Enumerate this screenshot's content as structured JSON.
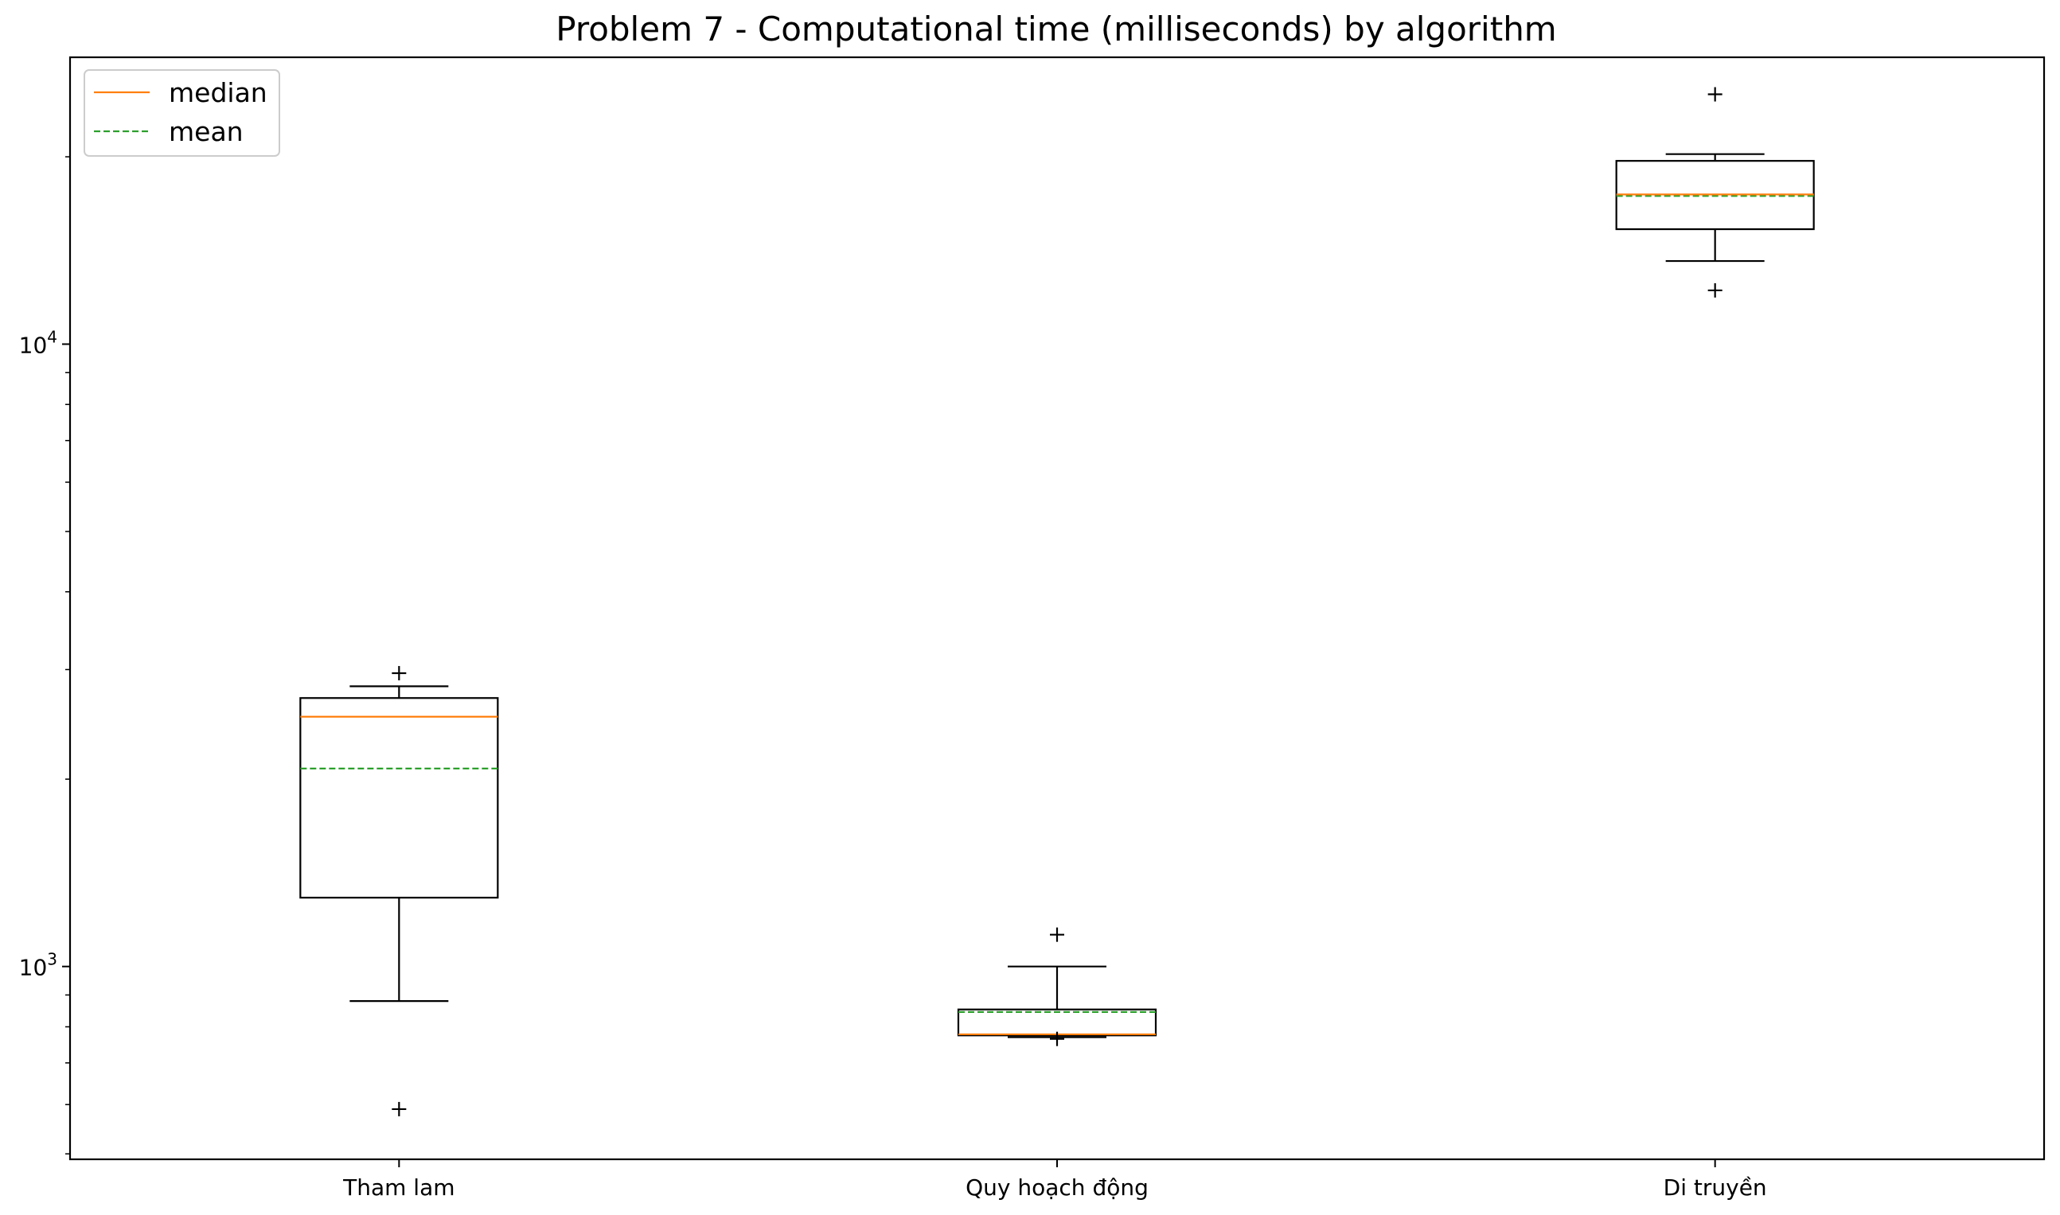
{
  "chart_data": {
    "type": "box",
    "title": "Problem 7 - Computational time (milliseconds) by algorithm",
    "xlabel": "",
    "ylabel": "",
    "yscale": "log",
    "ylim": [
      490,
      28900
    ],
    "y_ticks": [
      {
        "value": 1000,
        "base": "10",
        "exp": "3"
      },
      {
        "value": 10000,
        "base": "10",
        "exp": "4"
      }
    ],
    "categories": [
      "Tham lam",
      "Quy hoạch động",
      "Di truyền"
    ],
    "boxes": [
      {
        "name": "Tham lam",
        "whisker_low": 880,
        "q1": 1290,
        "median": 2520,
        "q3": 2700,
        "whisker_high": 2820,
        "mean": 2080,
        "outliers": [
          590,
          2960
        ]
      },
      {
        "name": "Quy hoạch động",
        "whisker_low": 770,
        "q1": 775,
        "median": 778,
        "q3": 853,
        "whisker_high": 1000,
        "mean": 845,
        "outliers": [
          765,
          1125
        ]
      },
      {
        "name": "Di truyền",
        "whisker_low": 13600,
        "q1": 15300,
        "median": 17400,
        "q3": 19700,
        "whisker_high": 20200,
        "mean": 17300,
        "outliers": [
          12200,
          25200
        ]
      }
    ],
    "legend": {
      "position": "upper-left",
      "entries": [
        {
          "label": "median",
          "color": "#ff7f0e",
          "style": "solid"
        },
        {
          "label": "mean",
          "color": "#2ca02c",
          "style": "dashed"
        }
      ]
    },
    "colors": {
      "box": "#000000",
      "median": "#ff7f0e",
      "mean": "#2ca02c"
    },
    "grid": false
  }
}
